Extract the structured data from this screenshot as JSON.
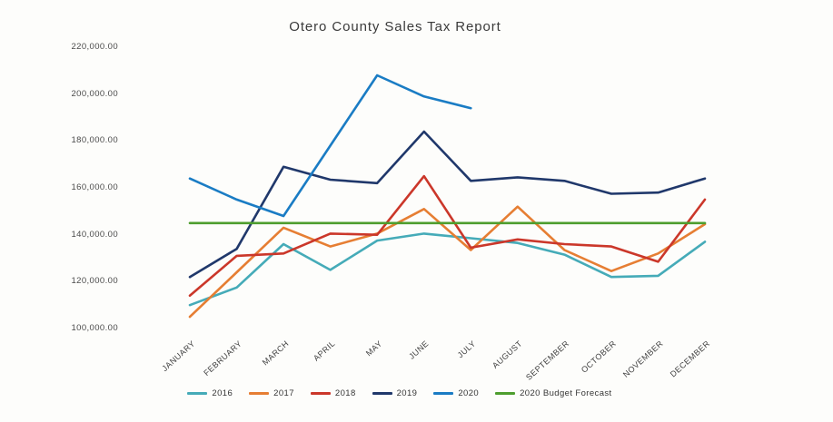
{
  "title": "Otero County Sales Tax Report",
  "chart_data": {
    "type": "line",
    "title": "Otero County Sales Tax Report",
    "categories": [
      "JANUARY",
      "FEBRUARY",
      "MARCH",
      "APRIL",
      "MAY",
      "JUNE",
      "JULY",
      "AUGUST",
      "SEPTEMBER",
      "OCTOBER",
      "NOVEMBER",
      "DECEMBER"
    ],
    "series": [
      {
        "name": "2016",
        "color": "#45abb8",
        "values": [
          110000,
          117500,
          136000,
          125000,
          137500,
          140500,
          138500,
          136500,
          131500,
          122000,
          122500,
          137000
        ]
      },
      {
        "name": "2017",
        "color": "#e67e33",
        "values": [
          105000,
          124000,
          143000,
          135000,
          140500,
          151000,
          133500,
          152000,
          133500,
          124500,
          132000,
          144500
        ]
      },
      {
        "name": "2018",
        "color": "#cb372a",
        "values": [
          114000,
          131000,
          132000,
          140500,
          140000,
          165000,
          134500,
          138000,
          136000,
          135000,
          128500,
          155000
        ]
      },
      {
        "name": "2019",
        "color": "#20386b",
        "values": [
          122000,
          134000,
          169000,
          163500,
          162000,
          184000,
          163000,
          164500,
          163000,
          157500,
          158000,
          164000
        ]
      },
      {
        "name": "2020",
        "color": "#1a7cc4",
        "values": [
          164000,
          155000,
          148000,
          178000,
          208000,
          199000,
          194000,
          null,
          null,
          null,
          null,
          null
        ]
      },
      {
        "name": "2020 Budget Forecast",
        "color": "#4e9e2e",
        "values": [
          145000,
          145000,
          145000,
          145000,
          145000,
          145000,
          145000,
          145000,
          145000,
          145000,
          145000,
          145000
        ]
      }
    ],
    "ylim": [
      100000,
      220000
    ],
    "ytick_labels": [
      "220,000.00",
      "200,000.00",
      "180,000.00",
      "160,000.00",
      "140,000.00",
      "120,000.00",
      "100,000.00"
    ],
    "xlabel": "",
    "ylabel": "",
    "grid": false,
    "legend_position": "bottom"
  }
}
